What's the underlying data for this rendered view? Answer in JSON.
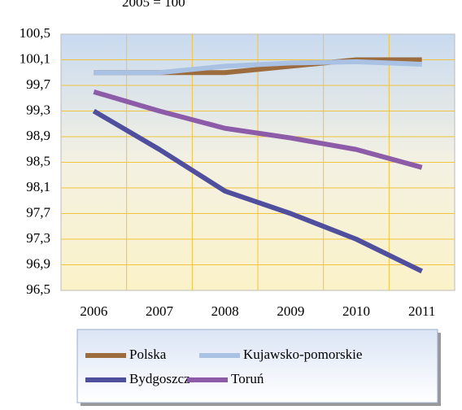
{
  "chart_data": {
    "type": "line",
    "title": "2005 = 100",
    "categories": [
      "2006",
      "2007",
      "2008",
      "2009",
      "2010",
      "2011"
    ],
    "series": [
      {
        "name": "Polska",
        "color": "#9c6b3e",
        "values": [
          99.9,
          99.9,
          99.9,
          100.0,
          100.1,
          100.1
        ]
      },
      {
        "name": "Kujawsko-pomorskie",
        "color": "#a9c1e2",
        "values": [
          99.9,
          99.9,
          100.0,
          100.05,
          100.07,
          100.03
        ]
      },
      {
        "name": "Bydgoszcz",
        "color": "#4f4f9e",
        "values": [
          99.3,
          98.7,
          98.05,
          97.7,
          97.3,
          96.8
        ]
      },
      {
        "name": "Toruń",
        "color": "#8c5ca8",
        "values": [
          99.6,
          99.3,
          99.03,
          98.88,
          98.7,
          98.42
        ]
      }
    ],
    "ylim": [
      96.5,
      100.5
    ],
    "yticks": [
      {
        "value": 96.5,
        "label": "96,5"
      },
      {
        "value": 96.9,
        "label": "96,9"
      },
      {
        "value": 97.3,
        "label": "97,3"
      },
      {
        "value": 97.7,
        "label": "97,7"
      },
      {
        "value": 98.1,
        "label": "98,1"
      },
      {
        "value": 98.5,
        "label": "98,5"
      },
      {
        "value": 98.9,
        "label": "98,9"
      },
      {
        "value": 99.3,
        "label": "99,3"
      },
      {
        "value": 99.7,
        "label": "99,7"
      },
      {
        "value": 100.1,
        "label": "100,1"
      },
      {
        "value": 100.5,
        "label": "100,5"
      }
    ],
    "grid": true
  }
}
